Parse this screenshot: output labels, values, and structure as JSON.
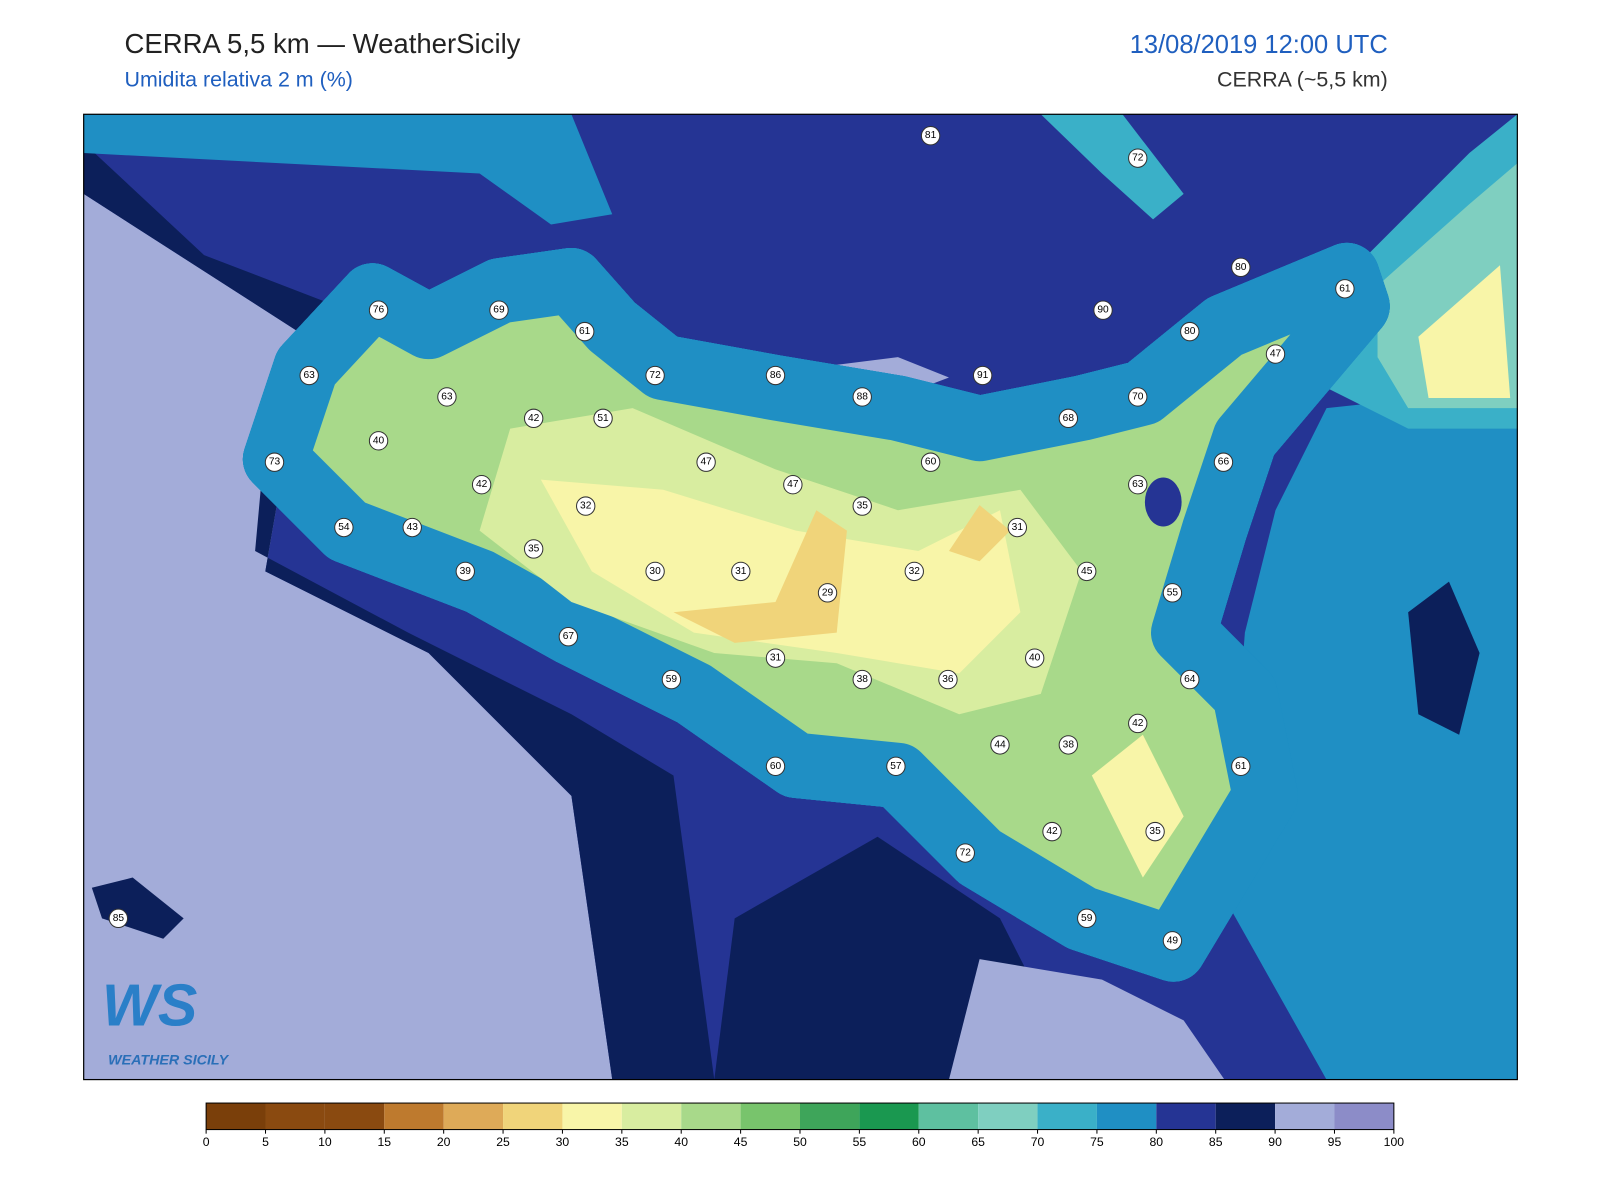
{
  "header": {
    "title": "CERRA 5,5 km — WeatherSicily",
    "subtitle": "Umidita relativa 2 m (%)",
    "date": "13/08/2019 12:00 UTC",
    "model": "CERRA (~5,5 km)"
  },
  "stations": {
    "values": [
      81,
      72,
      80,
      61,
      90,
      80,
      47,
      76,
      69,
      61,
      63,
      72,
      86,
      88,
      91,
      70,
      68,
      63,
      42,
      51,
      40,
      73,
      47,
      60,
      66,
      47,
      63,
      42,
      35,
      32,
      31,
      54,
      43,
      35,
      30,
      31,
      32,
      45,
      39,
      29,
      55,
      67,
      40,
      31,
      59,
      38,
      36,
      64,
      42,
      44,
      38,
      60,
      57,
      61,
      42,
      35,
      72,
      85,
      59,
      49
    ]
  },
  "colorbar": {
    "ticks": [
      0,
      5,
      10,
      15,
      20,
      25,
      30,
      35,
      40,
      45,
      50,
      55,
      60,
      65,
      70,
      75,
      80,
      85,
      90,
      95,
      100
    ],
    "colors": [
      "#7a3f0a",
      "#8a4a10",
      "#8a4a10",
      "#be7a2e",
      "#deaa58",
      "#f0d47a",
      "#f8f5a8",
      "#d8eda0",
      "#a8d98a",
      "#78c46c",
      "#3ea55a",
      "#1a9850",
      "#5ec0a0",
      "#7fcfc0",
      "#3ab0c8",
      "#1f8fc4",
      "#253494",
      "#0c1f5a",
      "#a3acd9",
      "#8c8cc8"
    ]
  },
  "logo": {
    "mark": "WS",
    "text": "WEATHER SICILY"
  }
}
